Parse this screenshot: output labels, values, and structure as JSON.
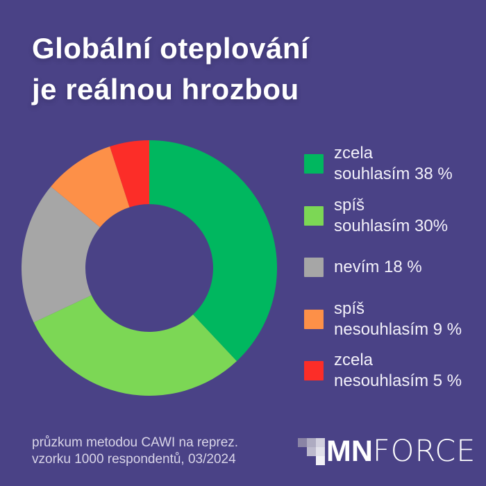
{
  "page": {
    "background": "#4a4286",
    "text_white": "#ffffff"
  },
  "title": {
    "line1": "Globální oteplování",
    "line2": "je reálnou hrozbou"
  },
  "chart_data": {
    "type": "pie",
    "variant": "donut",
    "title": "Globální oteplování je reálnou hrozbou",
    "categories": [
      "zcela souhlasím",
      "spíš souhlasím",
      "nevím",
      "spíš nesouhlasím",
      "zcela nesouhlasím"
    ],
    "values": [
      38,
      30,
      18,
      9,
      5
    ],
    "unit": "%",
    "colors": [
      "#00b75f",
      "#7cd755",
      "#a6a6a6",
      "#fd9048",
      "#fc2d28"
    ],
    "start_angle_deg": 0,
    "direction": "clockwise",
    "donut_hole_ratio": 0.5,
    "legend_position": "right",
    "legend_labels": [
      [
        "zcela",
        "souhlasím 38 %"
      ],
      [
        "spíš",
        "souhlasím 30%"
      ],
      [
        "nevím 18 %"
      ],
      [
        "spíš",
        "nesouhlasím 9 %"
      ],
      [
        "zcela",
        "nesouhlasím 5 %"
      ]
    ]
  },
  "footer": {
    "note_line1": "průzkum metodou CAWI na reprez.",
    "note_line2": "vzorku 1000 respondentů, 03/2024"
  },
  "logo": {
    "bold_part": "MN",
    "light_part": "FORCE",
    "mark_cells": [
      {
        "row": 0,
        "col": 0,
        "color": "#8a84a5"
      },
      {
        "row": 0,
        "col": 1,
        "color": "#aeabc1"
      },
      {
        "row": 0,
        "col": 2,
        "color": "#d2d0de"
      },
      {
        "row": 1,
        "col": 1,
        "color": "#bdbacd"
      },
      {
        "row": 1,
        "col": 2,
        "color": "#e2e1ea"
      },
      {
        "row": 2,
        "col": 2,
        "color": "#f2f1f6"
      }
    ]
  }
}
